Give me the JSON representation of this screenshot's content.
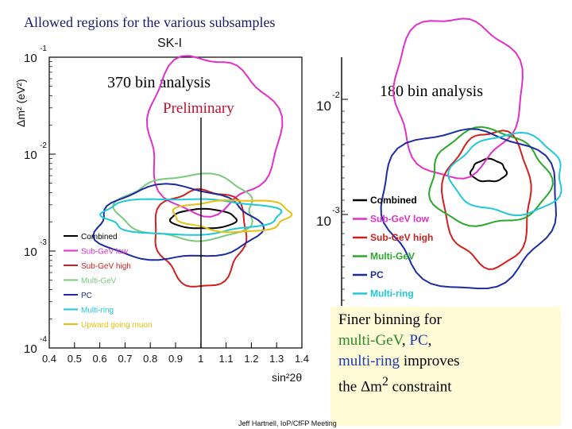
{
  "slide": {
    "title": "Allowed regions for the various subsamples",
    "footer": "Jeff Hartnell, IoP/CfFP Meeting",
    "note": {
      "line1": "Finer binning for",
      "multi_gev": "multi-GeV",
      "pc": "PC",
      "multi_ring": "multi-ring",
      "improves": " improves",
      "line4_prefix": "the ",
      "delta_m": "Δm",
      "sup": "2",
      "line4_suffix": " constraint"
    }
  },
  "chart_data": [
    {
      "type": "line",
      "panel": "left",
      "title": "SK-I",
      "subtitle": "370 bin analysis",
      "annotation": "Preliminary",
      "xlabel": "sin²2θ",
      "ylabel": "Δm² (eV²)",
      "x_ticks": [
        "0.4",
        "0.5",
        "0.6",
        "0.7",
        "0.8",
        "0.9",
        "1",
        "1.1",
        "1.2",
        "1.3",
        "1.4"
      ],
      "xlim": [
        0.4,
        1.4
      ],
      "y_scale": "log",
      "ylim": [
        0.0001,
        0.1
      ],
      "y_ticks": [
        {
          "base": "10",
          "exp": "-1"
        },
        {
          "base": "10",
          "exp": "-2"
        },
        {
          "base": "10",
          "exp": "-3"
        },
        {
          "base": "10",
          "exp": "-4"
        }
      ],
      "legend_position": "bottom-left",
      "series": [
        {
          "name": "Combined",
          "color": "#000000",
          "center": [
            1.02,
            0.0021
          ],
          "x_range": [
            0.88,
            1.14
          ],
          "y_range": [
            0.0017,
            0.0027
          ]
        },
        {
          "name": "Sub-GeV low",
          "color": "#e030c8",
          "center": [
            0.95,
            0.008
          ],
          "x_range": [
            0.78,
            1.3
          ],
          "y_range": [
            0.0025,
            0.1
          ]
        },
        {
          "name": "Sub-GeV high",
          "color": "#d02020",
          "center": [
            0.98,
            0.0013
          ],
          "x_range": [
            0.82,
            1.18
          ],
          "y_range": [
            0.00045,
            0.0045
          ]
        },
        {
          "name": "Multi-GeV",
          "color": "#7cc87c",
          "center": [
            1.0,
            0.0028
          ],
          "x_range": [
            0.68,
            1.22
          ],
          "y_range": [
            0.0013,
            0.006
          ]
        },
        {
          "name": "PC",
          "color": "#1c2ca0",
          "center": [
            0.9,
            0.0018
          ],
          "x_range": [
            0.58,
            1.22
          ],
          "y_range": [
            0.0008,
            0.0045
          ]
        },
        {
          "name": "Multi-ring",
          "color": "#20c8d8",
          "center": [
            1.0,
            0.0025
          ],
          "x_range": [
            0.6,
            1.3
          ],
          "y_range": [
            0.0015,
            0.0035
          ]
        },
        {
          "name": "Upward going muon",
          "color": "#e8c010",
          "center": [
            1.1,
            0.0023
          ],
          "x_range": [
            0.9,
            1.36
          ],
          "y_range": [
            0.0016,
            0.0034
          ]
        }
      ]
    },
    {
      "type": "line",
      "panel": "right",
      "subtitle": "180 bin analysis",
      "y_scale": "log",
      "y_ticks": [
        {
          "base": "10",
          "exp": "-2"
        },
        {
          "base": "10",
          "exp": "-3"
        }
      ],
      "legend_position": "bottom-left",
      "series": [
        {
          "name": "Combined",
          "color": "#000000"
        },
        {
          "name": "Sub-GeV low",
          "color": "#e030c8"
        },
        {
          "name": "Sub-GeV high",
          "color": "#d02020"
        },
        {
          "name": "Multi-GeV",
          "color": "#2aa82a"
        },
        {
          "name": "PC",
          "color": "#1c2ca0"
        },
        {
          "name": "Multi-ring",
          "color": "#20c8d8"
        }
      ]
    }
  ]
}
